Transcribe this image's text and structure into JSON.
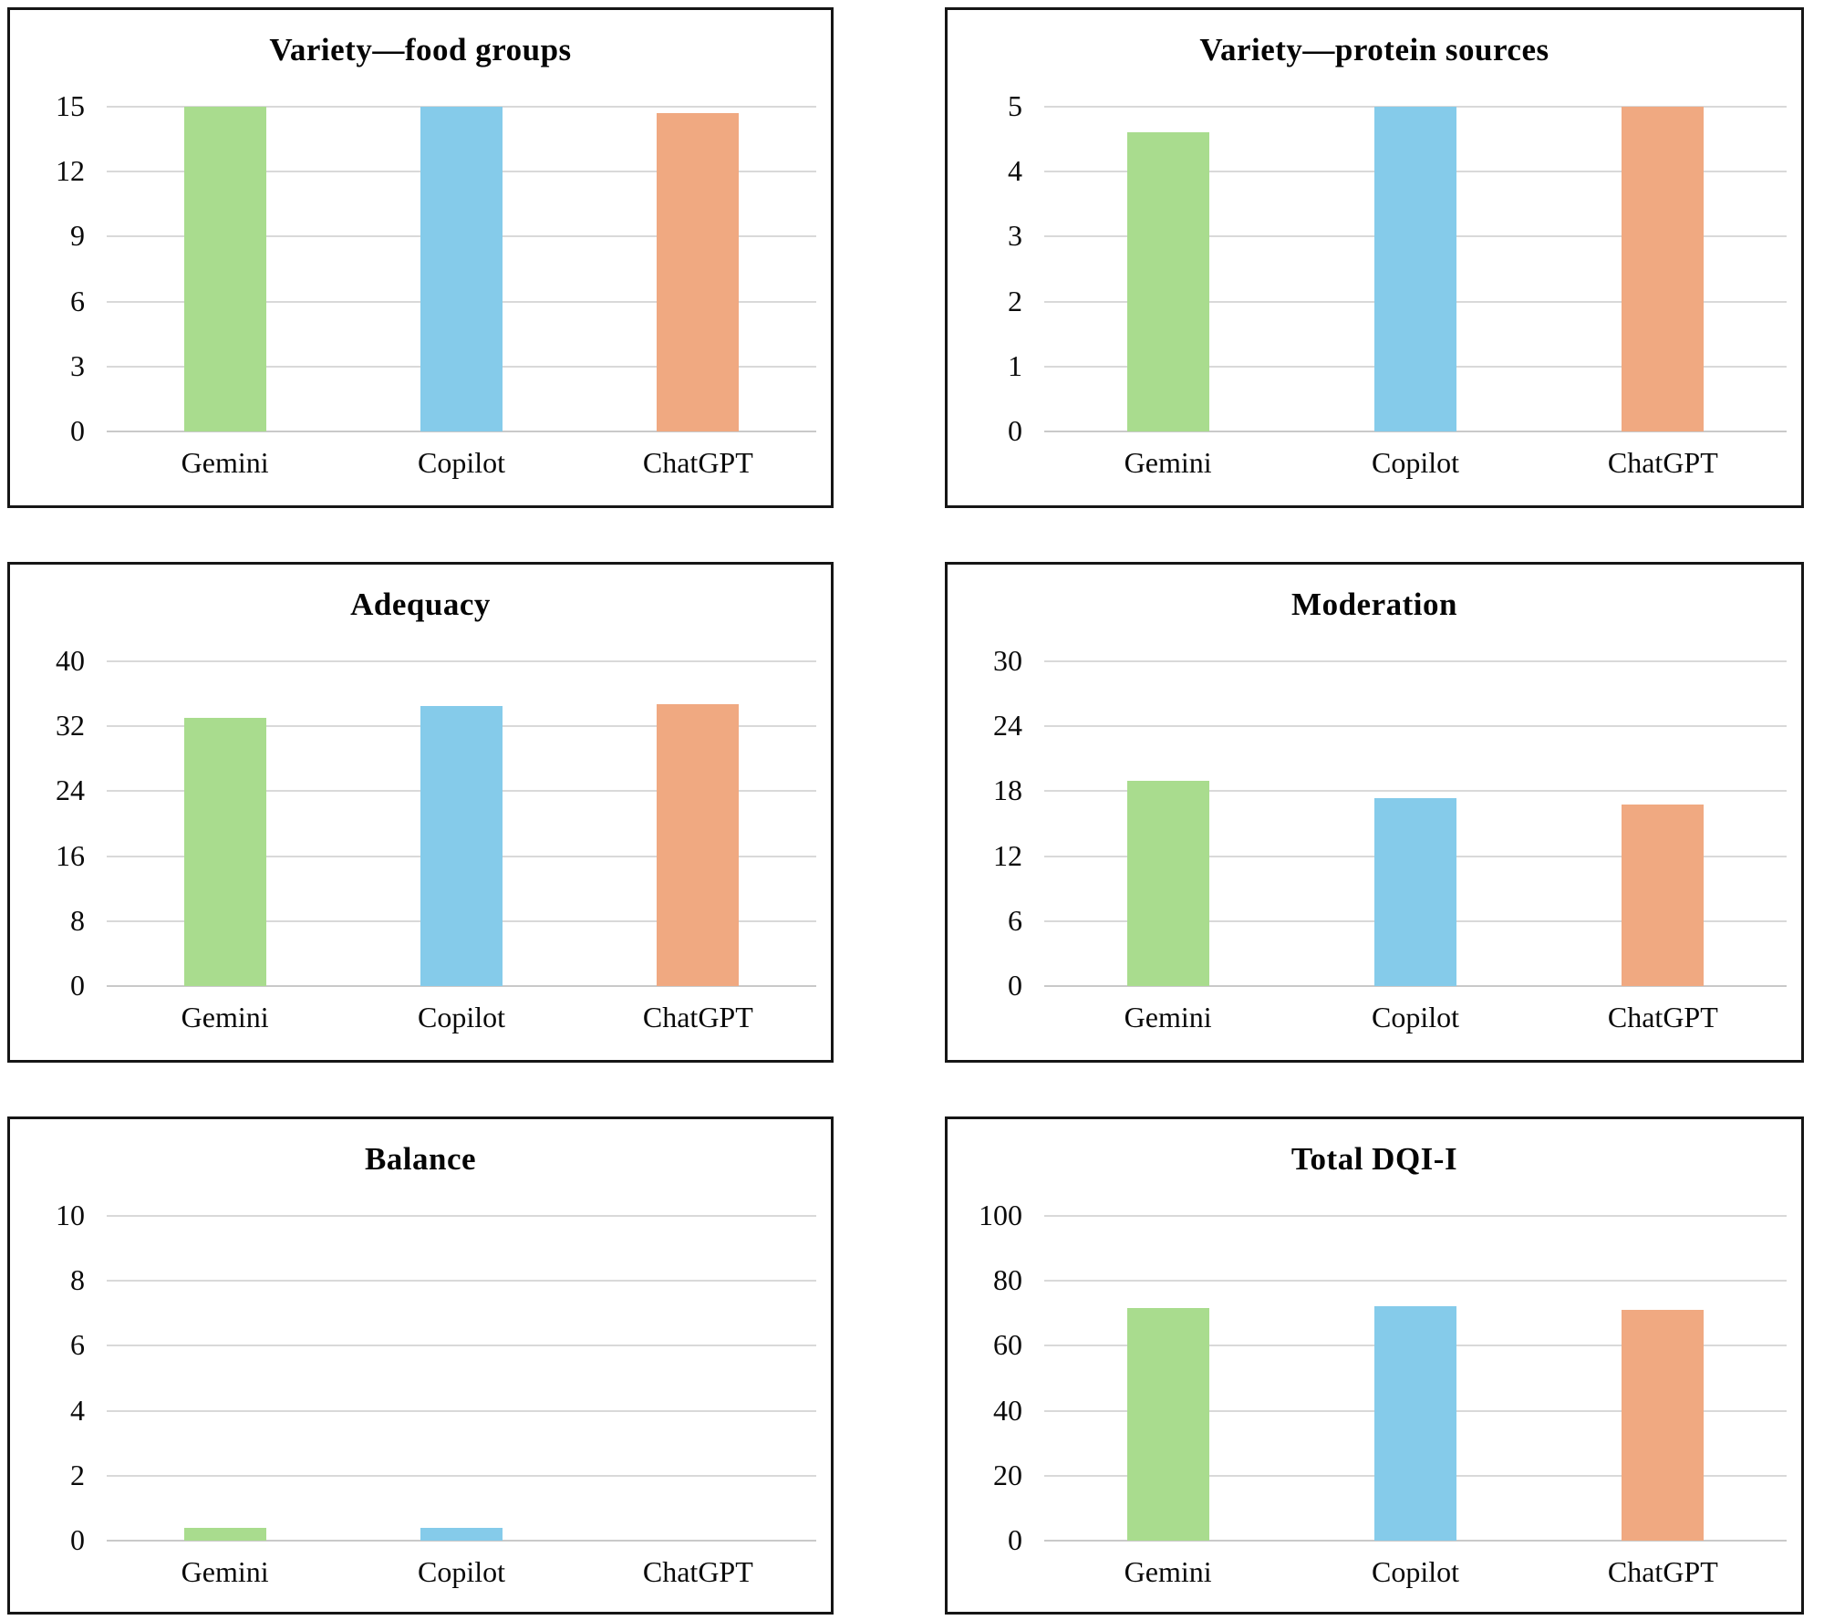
{
  "figure": {
    "description": "Six bar charts comparing DQI-I component scores of AI chatbots",
    "categories": [
      "Gemini",
      "Copilot",
      "ChatGPT"
    ]
  },
  "palette": {
    "gemini_bar": "#a9dc8e",
    "copilot_bar": "#85cbea",
    "chatgpt_bar": "#f0a981",
    "gridline": "#d9d9d9",
    "baseline": "#c9c9c9",
    "panel_border": "#161616"
  },
  "chart_data": [
    {
      "type": "bar",
      "title": "Variety—food groups",
      "categories": [
        "Gemini",
        "Copilot",
        "ChatGPT"
      ],
      "values": [
        15,
        15,
        14.7
      ],
      "ylim": [
        0,
        15
      ],
      "yticks": [
        0,
        3,
        6,
        9,
        12,
        15
      ],
      "grid": true,
      "legend": "none"
    },
    {
      "type": "bar",
      "title": "Variety—protein sources",
      "categories": [
        "Gemini",
        "Copilot",
        "ChatGPT"
      ],
      "values": [
        4.6,
        5,
        5
      ],
      "ylim": [
        0,
        5
      ],
      "yticks": [
        0,
        1,
        2,
        3,
        4,
        5
      ],
      "grid": true,
      "legend": "none"
    },
    {
      "type": "bar",
      "title": "Adequacy",
      "categories": [
        "Gemini",
        "Copilot",
        "ChatGPT"
      ],
      "values": [
        33,
        34.5,
        34.7
      ],
      "ylim": [
        0,
        40
      ],
      "yticks": [
        0,
        8,
        16,
        24,
        32,
        40
      ],
      "grid": true,
      "legend": "none"
    },
    {
      "type": "bar",
      "title": "Moderation",
      "categories": [
        "Gemini",
        "Copilot",
        "ChatGPT"
      ],
      "values": [
        19,
        17.4,
        16.8
      ],
      "ylim": [
        0,
        30
      ],
      "yticks": [
        0,
        6,
        12,
        18,
        24,
        30
      ],
      "grid": true,
      "legend": "none"
    },
    {
      "type": "bar",
      "title": "Balance",
      "categories": [
        "Gemini",
        "Copilot",
        "ChatGPT"
      ],
      "values": [
        0.4,
        0.4,
        0
      ],
      "ylim": [
        0,
        10
      ],
      "yticks": [
        0,
        2,
        4,
        6,
        8,
        10
      ],
      "grid": true,
      "legend": "none"
    },
    {
      "type": "bar",
      "title": "Total DQI-I",
      "categories": [
        "Gemini",
        "Copilot",
        "ChatGPT"
      ],
      "values": [
        71.7,
        72.2,
        71
      ],
      "ylim": [
        0,
        100
      ],
      "yticks": [
        0,
        20,
        40,
        60,
        80,
        100
      ],
      "grid": true,
      "legend": "none"
    }
  ]
}
